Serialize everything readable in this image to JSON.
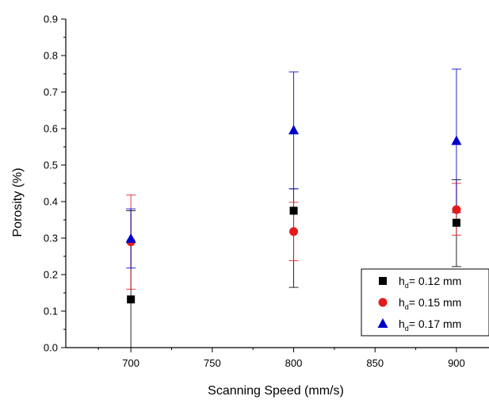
{
  "chart_data": {
    "type": "scatter",
    "xlabel": "Scanning Speed (mm/s)",
    "ylabel": "Porosity (%)",
    "xlim": [
      660,
      920
    ],
    "ylim": [
      0.0,
      0.9
    ],
    "x_ticks": [
      700,
      750,
      800,
      850,
      900
    ],
    "y_ticks": [
      0.0,
      0.1,
      0.2,
      0.3,
      0.4,
      0.5,
      0.6,
      0.7,
      0.8,
      0.9
    ],
    "x_tick_labels": [
      "700",
      "750",
      "800",
      "850",
      "900"
    ],
    "y_tick_labels": [
      "0.0",
      "0.1",
      "0.2",
      "0.3",
      "0.4",
      "0.5",
      "0.6",
      "0.7",
      "0.8",
      "0.9"
    ],
    "grid": false,
    "legend_position": "bottom-right",
    "series": [
      {
        "name_main": "h",
        "name_sub": "d",
        "name_rest": "= 0.12 mm",
        "marker": "square",
        "color": "#000000",
        "points": [
          {
            "x": 700,
            "y": 0.132,
            "err_low": 0.0,
            "err_high": 0.375
          },
          {
            "x": 800,
            "y": 0.375,
            "err_low": 0.165,
            "err_high": 0.435
          },
          {
            "x": 900,
            "y": 0.342,
            "err_low": 0.222,
            "err_high": 0.46
          }
        ]
      },
      {
        "name_main": "h",
        "name_sub": "d",
        "name_rest": "= 0.15 mm",
        "marker": "circle",
        "color": "#e31a1c",
        "points": [
          {
            "x": 700,
            "y": 0.29,
            "err_low": 0.16,
            "err_high": 0.418
          },
          {
            "x": 800,
            "y": 0.318,
            "err_low": 0.238,
            "err_high": 0.398
          },
          {
            "x": 900,
            "y": 0.378,
            "err_low": 0.308,
            "err_high": 0.45
          }
        ]
      },
      {
        "name_main": "h",
        "name_sub": "d",
        "name_rest": "= 0.17 mm",
        "marker": "triangle",
        "color": "#0000cc",
        "points": [
          {
            "x": 700,
            "y": 0.298,
            "err_low": 0.218,
            "err_high": 0.38
          },
          {
            "x": 800,
            "y": 0.595,
            "err_low": 0.435,
            "err_high": 0.755
          },
          {
            "x": 900,
            "y": 0.566,
            "err_low": 0.37,
            "err_high": 0.763
          }
        ]
      }
    ]
  }
}
